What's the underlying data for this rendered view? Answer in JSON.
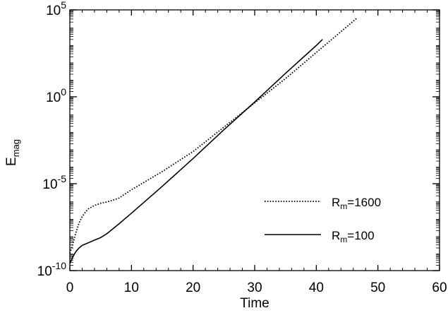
{
  "chart_data": {
    "type": "line",
    "title": "",
    "xlabel": "Time",
    "ylabel": {
      "base": "E",
      "subscript": "mag"
    },
    "xlim": [
      0,
      60
    ],
    "ylim_log10": [
      -10,
      5
    ],
    "yscale": "log",
    "grid": false,
    "legend_position": "bottom-right",
    "x_ticks": [
      0,
      10,
      20,
      30,
      40,
      50,
      60
    ],
    "x_tick_labels": [
      "0",
      "10",
      "20",
      "30",
      "40",
      "50",
      "60"
    ],
    "y_ticks": [
      {
        "base": "10",
        "exp": "5",
        "log10": 5
      },
      {
        "base": "10",
        "exp": "0",
        "log10": 0
      },
      {
        "base": "10",
        "exp": "-5",
        "log10": -5
      },
      {
        "base": "10",
        "exp": "-10",
        "log10": -10
      }
    ],
    "series": [
      {
        "name": {
          "base": "R",
          "sub": "m",
          "rest": "=1600"
        },
        "style": "dotted",
        "color": "#000000",
        "x": [
          0,
          0.5,
          1,
          1.5,
          2,
          2.5,
          3,
          4,
          5,
          6,
          7,
          8,
          10,
          15,
          20,
          25,
          30,
          35,
          40,
          45,
          46.5
        ],
        "log10_y": [
          -9,
          -8.45,
          -7.8,
          -7.25,
          -6.9,
          -6.65,
          -6.45,
          -6.25,
          -6.12,
          -6.05,
          -5.95,
          -5.82,
          -5.35,
          -4.3,
          -3.15,
          -1.75,
          -0.35,
          1.05,
          2.55,
          4.05,
          4.5
        ]
      },
      {
        "name": {
          "base": "R",
          "sub": "m",
          "rest": "=100"
        },
        "style": "solid",
        "color": "#000000",
        "x": [
          0,
          0.5,
          1,
          1.5,
          2,
          3,
          4,
          5,
          6,
          8,
          10,
          15,
          20,
          25,
          30,
          35,
          40,
          41
        ],
        "log10_y": [
          -9.6,
          -9.2,
          -8.9,
          -8.7,
          -8.55,
          -8.4,
          -8.25,
          -8.1,
          -7.88,
          -7.3,
          -6.7,
          -5.15,
          -3.55,
          -1.9,
          -0.3,
          1.35,
          2.95,
          3.3
        ]
      }
    ]
  }
}
